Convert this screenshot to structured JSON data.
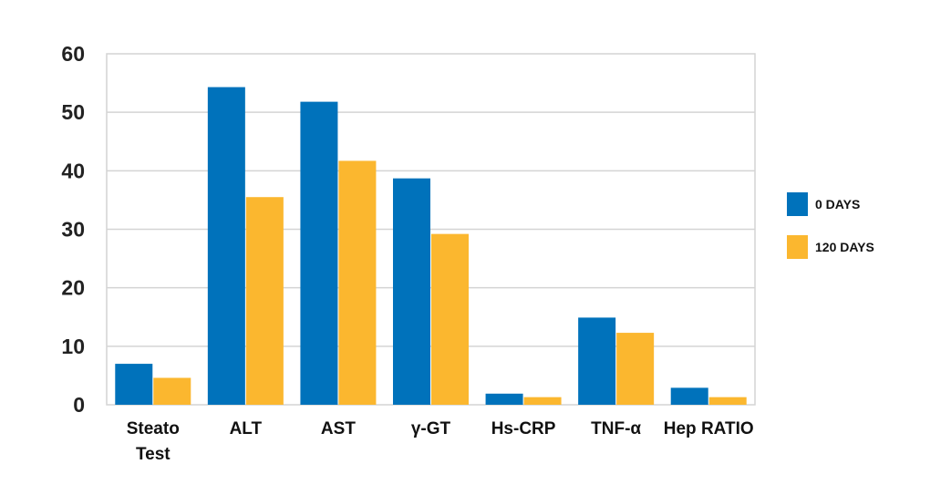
{
  "chart_data": {
    "type": "bar",
    "categories": [
      [
        "Steato",
        "Test"
      ],
      [
        "ALT"
      ],
      [
        "AST"
      ],
      [
        "γ-GT"
      ],
      [
        "Hs-CRP"
      ],
      [
        "TNF-α"
      ],
      [
        "Hep RATIO"
      ]
    ],
    "series": [
      {
        "name": "0 DAYS",
        "color": "#0072bb",
        "values": [
          7,
          54.3,
          51.8,
          38.7,
          1.9,
          14.9,
          2.9
        ]
      },
      {
        "name": "120 DAYS",
        "color": "#fbb72f",
        "values": [
          4.6,
          35.5,
          41.7,
          29.2,
          1.3,
          12.3,
          1.3
        ]
      }
    ],
    "y_ticks": [
      0,
      10,
      20,
      30,
      40,
      50,
      60
    ],
    "ylim": [
      0,
      60
    ],
    "grid": true,
    "legend_position": "right"
  }
}
